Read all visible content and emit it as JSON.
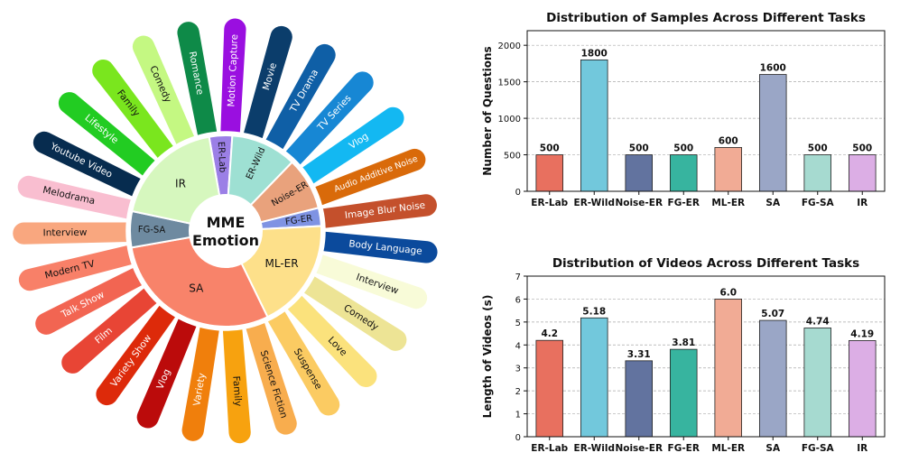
{
  "sunburst": {
    "center": {
      "line1": "MME",
      "line2": "Emotion"
    },
    "inner": [
      {
        "label": "ER-Lab",
        "color": "#9b7fe6"
      },
      {
        "label": "ER-Wild",
        "color": "#9ee0d3"
      },
      {
        "label": "Noise-ER",
        "color": "#e9a27c"
      },
      {
        "label": "FG-ER",
        "color": "#7f93e3"
      },
      {
        "label": "ML-ER",
        "color": "#fde08a"
      },
      {
        "label": "SA",
        "color": "#f8836a"
      },
      {
        "label": "FG-SA",
        "color": "#6e8aa0"
      },
      {
        "label": "IR",
        "color": "#d6f7be"
      }
    ],
    "outer": [
      {
        "label": "Motion Capture",
        "color": "#9a0fe0"
      },
      {
        "label": "Movie",
        "color": "#0b3d6b"
      },
      {
        "label": "TV Drama",
        "color": "#0f5fa6"
      },
      {
        "label": "TV Series",
        "color": "#1787d4"
      },
      {
        "label": "Vlog",
        "color": "#13b8f2"
      },
      {
        "label": "Audio Additive Noise",
        "color": "#d96a0a"
      },
      {
        "label": "Image Blur Noise",
        "color": "#c4502c"
      },
      {
        "label": "Body Language",
        "color": "#0b4a9c"
      },
      {
        "label": "Interview",
        "color": "#f8fbd8"
      },
      {
        "label": "Comedy",
        "color": "#ede495"
      },
      {
        "label": "Love",
        "color": "#fbe27c"
      },
      {
        "label": "Suspense",
        "color": "#fbcb62"
      },
      {
        "label": "Science Fiction",
        "color": "#f8ad4e"
      },
      {
        "label": "Family",
        "color": "#f7a20f"
      },
      {
        "label": "Variety",
        "color": "#f07f0c"
      },
      {
        "label": "Vlog",
        "color": "#bb0b0b"
      },
      {
        "label": "Variety Show",
        "color": "#dd2a0a"
      },
      {
        "label": "Film",
        "color": "#e84535"
      },
      {
        "label": "Talk Show",
        "color": "#f26552"
      },
      {
        "label": "Modern TV",
        "color": "#f88068"
      },
      {
        "label": "Interview",
        "color": "#f9a77f"
      },
      {
        "label": "Melodrama",
        "color": "#f9bed0"
      },
      {
        "label": "Youtube Video",
        "color": "#072c4f"
      },
      {
        "label": "Lifestyle",
        "color": "#22cc22"
      },
      {
        "label": "Family",
        "color": "#7ae61e"
      },
      {
        "label": "Comedy",
        "color": "#c4f882"
      },
      {
        "label": "Romance",
        "color": "#0e8a48"
      }
    ]
  },
  "chart_data": [
    {
      "type": "bar",
      "title": "Distribution of Samples Across Different Tasks",
      "xlabel": "",
      "ylabel": "Number of Questions",
      "categories": [
        "ER-Lab",
        "ER-Wild",
        "Noise-ER",
        "FG-ER",
        "ML-ER",
        "SA",
        "FG-SA",
        "IR"
      ],
      "values": [
        500,
        1800,
        500,
        500,
        600,
        1600,
        500,
        500
      ],
      "value_labels": [
        "500",
        "1800",
        "500",
        "500",
        "600",
        "1600",
        "500",
        "500"
      ],
      "colors": [
        "#e8705f",
        "#72c8dc",
        "#62739f",
        "#37b49f",
        "#f1ab95",
        "#9aa6c6",
        "#a6dad0",
        "#dcaee5"
      ],
      "ylim": [
        0,
        2200
      ],
      "yticks": [
        0,
        500,
        1000,
        1500,
        2000
      ],
      "grid": true
    },
    {
      "type": "bar",
      "title": "Distribution of Videos Across Different Tasks",
      "xlabel": "",
      "ylabel": "Length of Videos (s)",
      "categories": [
        "ER-Lab",
        "ER-Wild",
        "Noise-ER",
        "FG-ER",
        "ML-ER",
        "SA",
        "FG-SA",
        "IR"
      ],
      "values": [
        4.2,
        5.18,
        3.31,
        3.81,
        6.0,
        5.07,
        4.74,
        4.19
      ],
      "value_labels": [
        "4.2",
        "5.18",
        "3.31",
        "3.81",
        "6.0",
        "5.07",
        "4.74",
        "4.19"
      ],
      "colors": [
        "#e8705f",
        "#72c8dc",
        "#62739f",
        "#37b49f",
        "#f1ab95",
        "#9aa6c6",
        "#a6dad0",
        "#dcaee5"
      ],
      "ylim": [
        0,
        7
      ],
      "yticks": [
        0,
        1,
        2,
        3,
        4,
        5,
        6,
        7
      ],
      "grid": true
    }
  ]
}
